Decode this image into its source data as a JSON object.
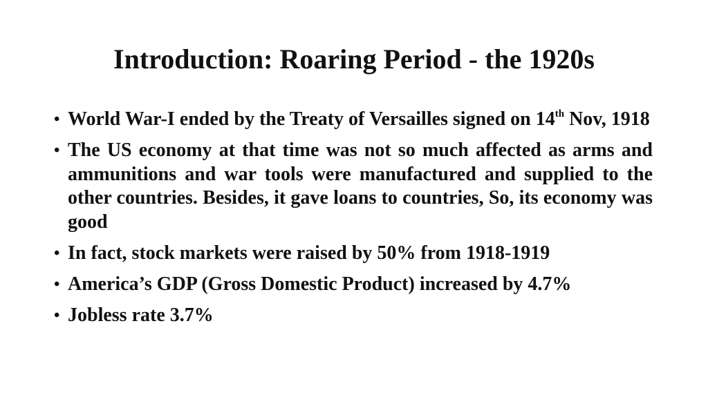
{
  "slide": {
    "title": "Introduction: Roaring Period - the 1920s",
    "bullet_symbol": "•",
    "bullets": [
      {
        "text": "World War-I ended by the Treaty of Versailles signed on 14",
        "superscript": "th",
        "text_after": " Nov, 1918"
      },
      {
        "text": "The US economy at that time was not so much affected as arms and ammunitions and war tools were manufactured and supplied to the other countries. Besides, it gave loans to countries, So, its economy was good"
      },
      {
        "text": "In fact, stock markets were raised by 50% from 1918-1919"
      },
      {
        "text": "America’s GDP (Gross Domestic Product) increased by 4.7%"
      },
      {
        "text": "Jobless rate 3.7%"
      }
    ]
  }
}
